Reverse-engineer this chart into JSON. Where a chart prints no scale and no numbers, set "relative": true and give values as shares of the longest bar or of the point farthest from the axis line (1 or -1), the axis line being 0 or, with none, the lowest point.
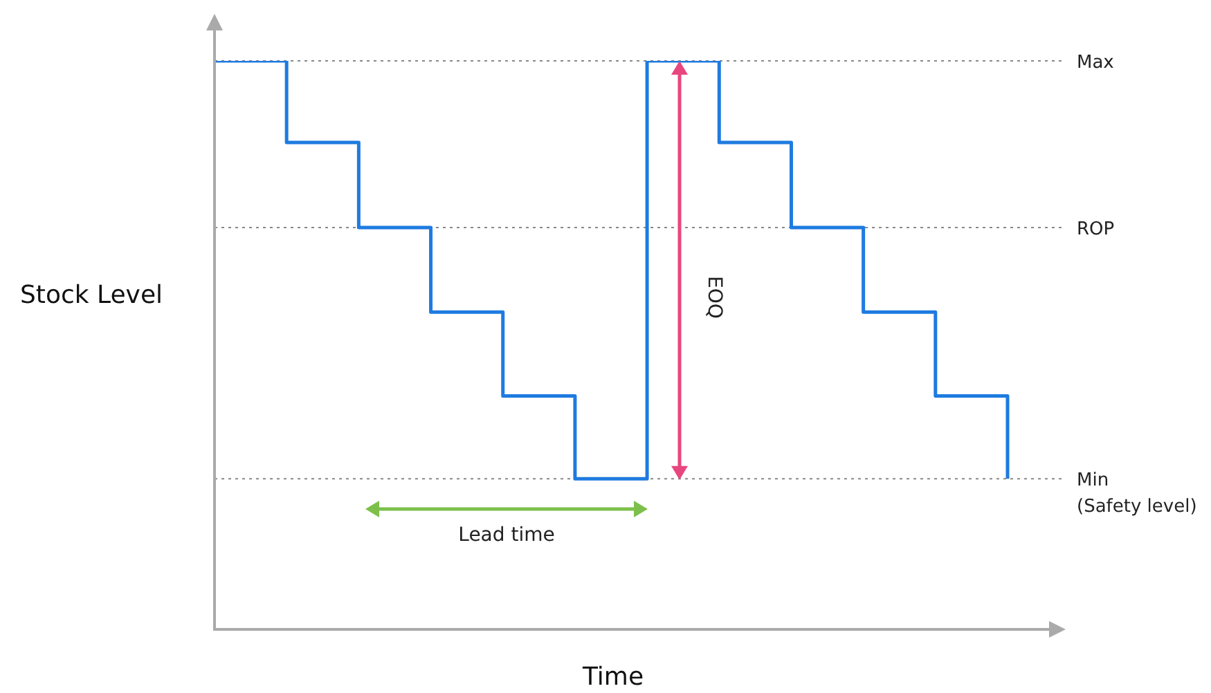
{
  "chart_data": {
    "type": "step",
    "relative": true,
    "xlabel": "Time",
    "ylabel": "Stock Level",
    "categories": [
      null,
      null,
      null,
      null,
      null,
      null,
      null,
      null,
      null,
      null,
      null,
      null
    ],
    "series": [
      {
        "color": "#1e7be0",
        "values": [
          1,
          0.856,
          0.706,
          0.557,
          0.409,
          0.263,
          1,
          0.856,
          0.706,
          0.557,
          0.409,
          0.263
        ]
      }
    ],
    "ref_lines": [
      {
        "axis": "y",
        "value": 1,
        "label": "Max",
        "color": "#888888",
        "line_style": "dotted"
      },
      {
        "axis": "y",
        "value": 0.706,
        "label": "ROP",
        "color": "#888888",
        "line_style": "dotted"
      },
      {
        "axis": "y",
        "value": 0.263,
        "label": "Min\n(Safety level)",
        "color": "#888888",
        "line_style": "dotted"
      }
    ],
    "annotations": [
      "EOQ",
      "Lead time"
    ],
    "grid": false,
    "marker": "none"
  }
}
